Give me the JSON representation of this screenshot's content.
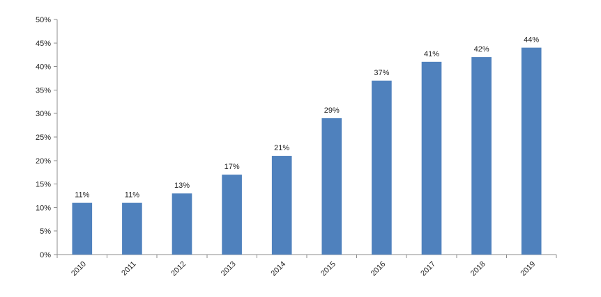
{
  "chart_data": {
    "type": "bar",
    "title": "",
    "xlabel": "",
    "ylabel": "",
    "categories": [
      "2010",
      "2011",
      "2012",
      "2013",
      "2014",
      "2015",
      "2016",
      "2017",
      "2018",
      "2019"
    ],
    "values": [
      11,
      11,
      13,
      17,
      21,
      29,
      37,
      41,
      42,
      44
    ],
    "data_labels": [
      "11%",
      "11%",
      "13%",
      "17%",
      "21%",
      "29%",
      "37%",
      "41%",
      "42%",
      "44%"
    ],
    "ylim": [
      0,
      50
    ],
    "yticks": [
      0,
      5,
      10,
      15,
      20,
      25,
      30,
      35,
      40,
      45,
      50
    ],
    "ytick_labels": [
      "0%",
      "5%",
      "10%",
      "15%",
      "20%",
      "25%",
      "30%",
      "35%",
      "40%",
      "45%",
      "50%"
    ],
    "grid": false,
    "legend": "none",
    "bar_color": "#4f81bd",
    "axis_color": "#8c8c8c"
  }
}
